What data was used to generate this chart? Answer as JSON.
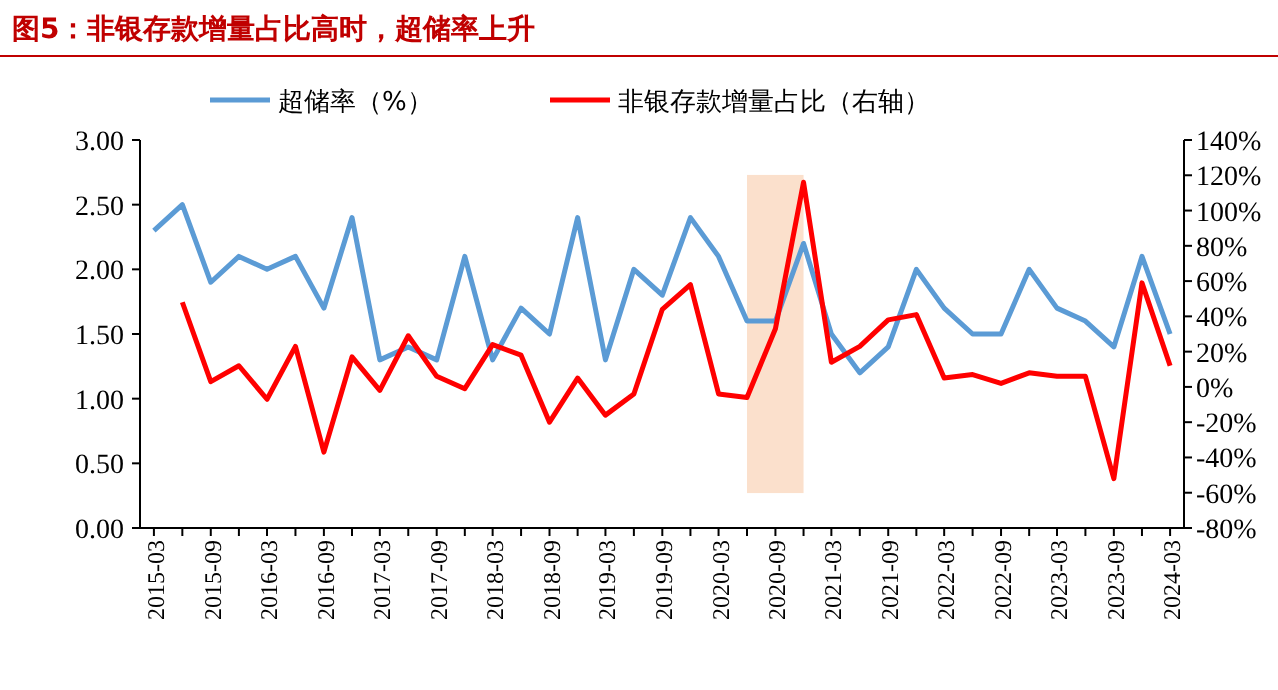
{
  "chart_data": {
    "type": "line",
    "title": "图5：非银存款增量占比高时，超储率上升",
    "x": [
      "2015-03",
      "2015-06",
      "2015-09",
      "2015-12",
      "2016-03",
      "2016-06",
      "2016-09",
      "2016-12",
      "2017-03",
      "2017-06",
      "2017-09",
      "2017-12",
      "2018-03",
      "2018-06",
      "2018-09",
      "2018-12",
      "2019-03",
      "2019-06",
      "2019-09",
      "2019-12",
      "2020-03",
      "2020-06",
      "2020-09",
      "2020-12",
      "2021-03",
      "2021-06",
      "2021-09",
      "2021-12",
      "2022-03",
      "2022-06",
      "2022-09",
      "2022-12",
      "2023-03",
      "2023-06",
      "2023-09",
      "2023-12",
      "2024-03"
    ],
    "series": [
      {
        "name": "超储率（%）",
        "color": "#5b9bd5",
        "values": [
          2.3,
          2.5,
          1.9,
          2.1,
          2.0,
          2.1,
          1.7,
          2.4,
          1.3,
          1.4,
          1.3,
          2.1,
          1.3,
          1.7,
          1.5,
          2.4,
          1.3,
          2.0,
          1.8,
          2.4,
          2.1,
          1.6,
          1.6,
          2.2,
          1.5,
          1.2,
          1.4,
          2.0,
          1.7,
          1.5,
          1.5,
          2.0,
          1.7,
          1.6,
          1.4,
          2.1,
          1.5
        ]
      },
      {
        "name": "非银存款增量占比（右轴）",
        "color": "#ff0000",
        "axis": "y2",
        "values": [
          null,
          48,
          3,
          12,
          -7,
          23,
          -37,
          17,
          -2,
          29,
          6,
          -1,
          24,
          18,
          -20,
          5,
          -16,
          -4,
          44,
          58,
          -4,
          -6,
          33,
          116,
          14,
          23,
          38,
          41,
          5,
          7,
          2,
          8,
          6,
          6,
          -52,
          59,
          12
        ]
      }
    ],
    "xlim": [
      "2015-01-15",
      "2024-04-15"
    ],
    "xticks": [
      "2015-03",
      "2015-09",
      "2016-03",
      "2016-09",
      "2017-03",
      "2017-09",
      "2018-03",
      "2018-09",
      "2019-03",
      "2019-09",
      "2020-03",
      "2020-09",
      "2021-03",
      "2021-09",
      "2022-03",
      "2022-09",
      "2023-03",
      "2023-09",
      "2024-03"
    ],
    "ylim": [
      0,
      3
    ],
    "yticks": [
      {
        "value": 0,
        "label": "0.00"
      },
      {
        "value": 0.5,
        "label": "0.50"
      },
      {
        "value": 1,
        "label": "1.00"
      },
      {
        "value": 1.5,
        "label": "1.50"
      },
      {
        "value": 2,
        "label": "2.00"
      },
      {
        "value": 2.5,
        "label": "2.50"
      },
      {
        "value": 3,
        "label": "3.00"
      }
    ],
    "y2lim": [
      -80,
      140
    ],
    "y2ticks": [
      {
        "value": -80,
        "label": "-80%"
      },
      {
        "value": -60,
        "label": "-60%"
      },
      {
        "value": -40,
        "label": "-40%"
      },
      {
        "value": -20,
        "label": "-20%"
      },
      {
        "value": 0,
        "label": "0%"
      },
      {
        "value": 20,
        "label": "20%"
      },
      {
        "value": 40,
        "label": "40%"
      },
      {
        "value": 60,
        "label": "60%"
      },
      {
        "value": 80,
        "label": "80%"
      },
      {
        "value": 100,
        "label": "100%"
      },
      {
        "value": 120,
        "label": "120%"
      },
      {
        "value": 140,
        "label": "140%"
      }
    ],
    "bands": [
      {
        "axis": "x",
        "from": "2020-06",
        "to": "2020-12",
        "color": "#fbe0cc"
      }
    ],
    "legend": "top",
    "grid": false,
    "marker": "none",
    "line_style": "solid"
  }
}
